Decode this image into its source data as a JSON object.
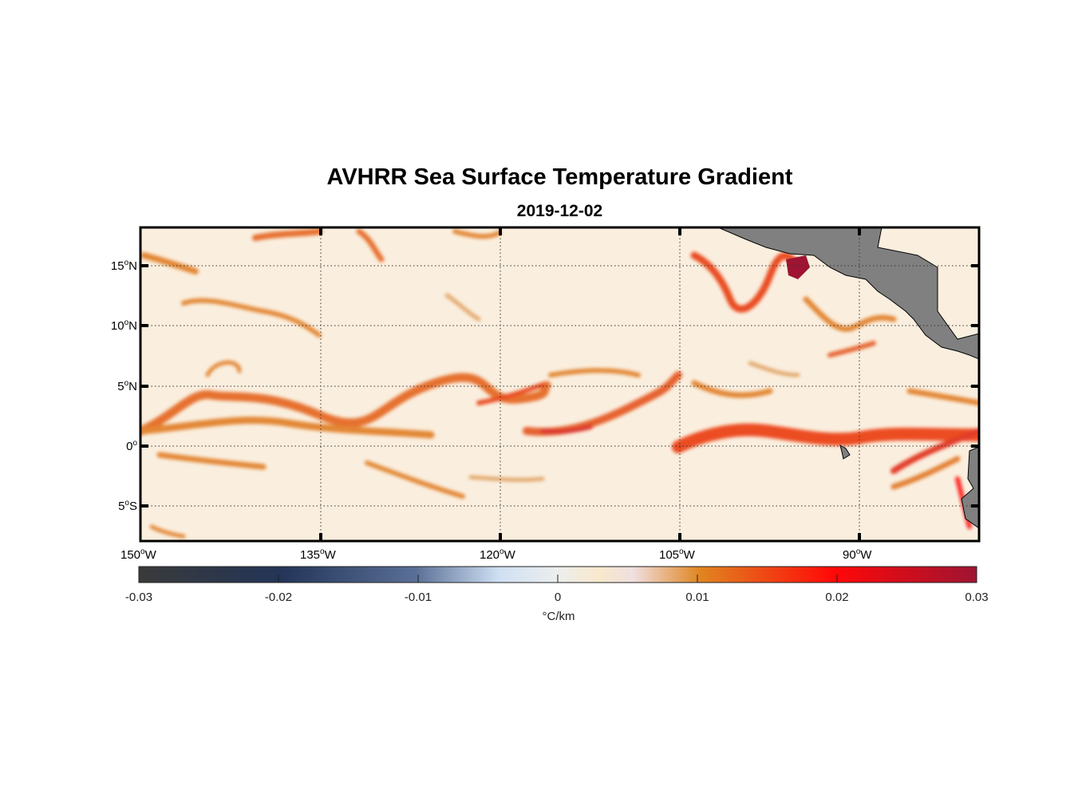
{
  "title": "AVHRR Sea Surface Temperature Gradient",
  "subtitle": "2019-12-02",
  "map": {
    "lon_range": [
      -150,
      -80
    ],
    "lat_range": [
      -7.9,
      18.2
    ],
    "lon_ticks": [
      {
        "deg": "150",
        "hemi": "W"
      },
      {
        "deg": "135",
        "hemi": "W"
      },
      {
        "deg": "120",
        "hemi": "W"
      },
      {
        "deg": "105",
        "hemi": "W"
      },
      {
        "deg": "90",
        "hemi": "W"
      }
    ],
    "lat_ticks": [
      {
        "deg": "15",
        "hemi": "N"
      },
      {
        "deg": "10",
        "hemi": "N"
      },
      {
        "deg": "5",
        "hemi": "N"
      },
      {
        "deg": "0",
        "hemi": ""
      },
      {
        "deg": "5",
        "hemi": "S"
      }
    ],
    "land_color": "#808080",
    "ocean_background": "#fbeedd"
  },
  "colorbar": {
    "ticks": [
      "-0.03",
      "-0.02",
      "-0.01",
      "0",
      "0.01",
      "0.02",
      "0.03"
    ],
    "unit": "°C/km",
    "range": [
      -0.03,
      0.03
    ],
    "colors": [
      "#3a3a3a",
      "#233558",
      "#5a6f97",
      "#cfe0f3",
      "#eceeed",
      "#f8e8cc",
      "#e08520",
      "#ff0808",
      "#9e1432"
    ]
  }
}
